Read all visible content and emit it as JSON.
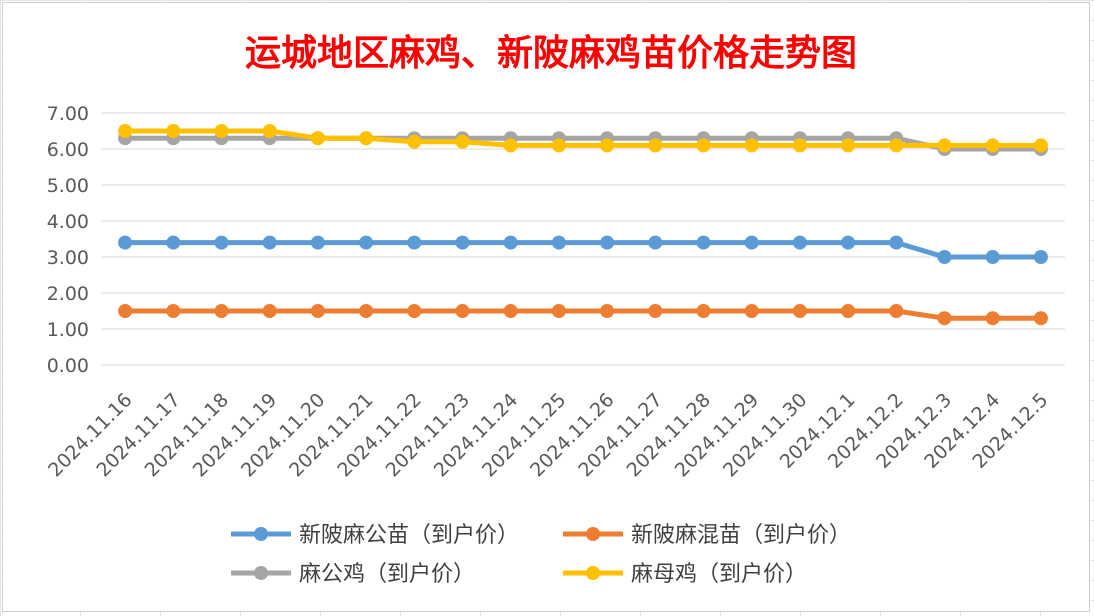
{
  "chart_data": {
    "type": "line",
    "title": "运城地区麻鸡、新陂麻鸡苗价格走势图",
    "xlabel": "",
    "ylabel": "",
    "ylim": [
      0,
      7
    ],
    "yticks": [
      "0.00",
      "1.00",
      "2.00",
      "3.00",
      "4.00",
      "5.00",
      "6.00",
      "7.00"
    ],
    "grid": true,
    "legend_position": "bottom",
    "x": [
      "2024.11.16",
      "2024.11.17",
      "2024.11.18",
      "2024.11.19",
      "2024.11.20",
      "2024.11.21",
      "2024.11.22",
      "2024.11.23",
      "2024.11.24",
      "2024.11.25",
      "2024.11.26",
      "2024.11.27",
      "2024.11.28",
      "2024.11.29",
      "2024.11.30",
      "2024.12.1",
      "2024.12.2",
      "2024.12.3",
      "2024.12.4",
      "2024.12.5"
    ],
    "series": [
      {
        "name": "新陂麻公苗（到户价）",
        "color": "#5b9bd5",
        "values": [
          3.4,
          3.4,
          3.4,
          3.4,
          3.4,
          3.4,
          3.4,
          3.4,
          3.4,
          3.4,
          3.4,
          3.4,
          3.4,
          3.4,
          3.4,
          3.4,
          3.4,
          3.0,
          3.0,
          3.0
        ]
      },
      {
        "name": "新陂麻混苗（到户价）",
        "color": "#ed7d31",
        "values": [
          1.5,
          1.5,
          1.5,
          1.5,
          1.5,
          1.5,
          1.5,
          1.5,
          1.5,
          1.5,
          1.5,
          1.5,
          1.5,
          1.5,
          1.5,
          1.5,
          1.5,
          1.3,
          1.3,
          1.3
        ]
      },
      {
        "name": "麻公鸡（到户价）",
        "color": "#a5a5a5",
        "values": [
          6.3,
          6.3,
          6.3,
          6.3,
          6.3,
          6.3,
          6.3,
          6.3,
          6.3,
          6.3,
          6.3,
          6.3,
          6.3,
          6.3,
          6.3,
          6.3,
          6.3,
          6.0,
          6.0,
          6.0
        ]
      },
      {
        "name": "麻母鸡（到户价）",
        "color": "#ffc000",
        "values": [
          6.5,
          6.5,
          6.5,
          6.5,
          6.3,
          6.3,
          6.2,
          6.2,
          6.1,
          6.1,
          6.1,
          6.1,
          6.1,
          6.1,
          6.1,
          6.1,
          6.1,
          6.1,
          6.1,
          6.1
        ]
      }
    ],
    "colors": {
      "title": "#ff0000",
      "gridline": "#d9d9d9"
    }
  }
}
